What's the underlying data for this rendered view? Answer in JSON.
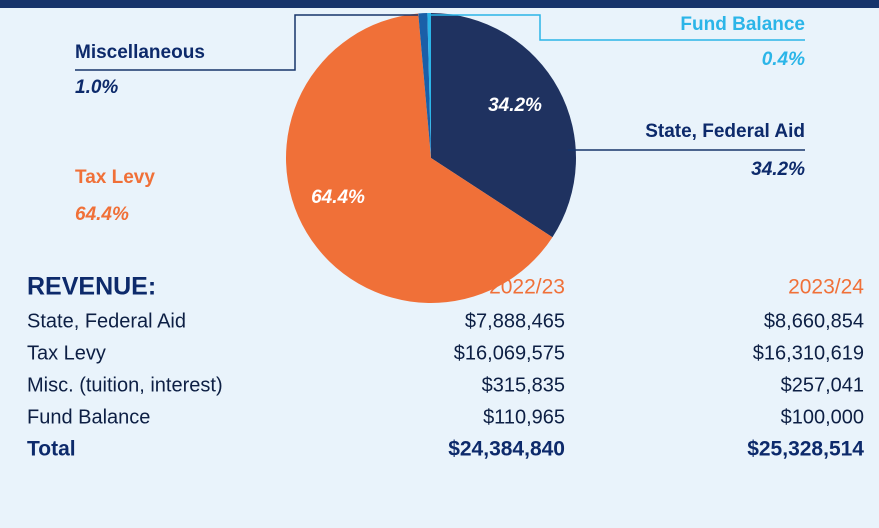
{
  "chart_data": {
    "type": "pie",
    "categories": [
      "State, Federal Aid",
      "Tax Levy",
      "Miscellaneous",
      "Fund Balance"
    ],
    "values": [
      34.2,
      64.4,
      1.0,
      0.4
    ],
    "value_labels": [
      "34.2%",
      "64.4%",
      "1.0%",
      "0.4%"
    ],
    "colors": [
      "#1f3260",
      "#f07038",
      "#1a5fa8",
      "#2bb5e8"
    ]
  },
  "table": {
    "title": "REVENUE:",
    "columns": [
      "2022/23",
      "2023/24"
    ],
    "rows": [
      [
        "State, Federal Aid",
        "$7,888,465",
        "$8,660,854"
      ],
      [
        "Tax Levy",
        "$16,069,575",
        "$16,310,619"
      ],
      [
        "Misc. (tuition, interest)",
        "$315,835",
        "$257,041"
      ],
      [
        "Fund Balance",
        "$110,965",
        "$100,000"
      ]
    ],
    "total": [
      "Total",
      "$24,384,840",
      "$25,328,514"
    ]
  }
}
